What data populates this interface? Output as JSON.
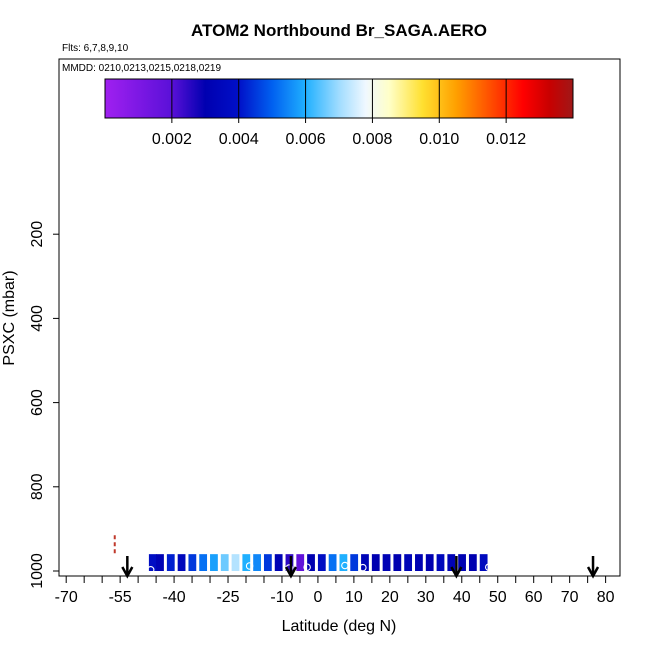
{
  "chart_data": {
    "type": "heatmap",
    "title": "ATOM2 Northbound Br_SAGA.AERO",
    "flights_label": "Flts: 6,7,8,9,10",
    "dates_label": "MMDD: 0210,0213,0215,0218,0219",
    "xlabel": "Latitude (deg N)",
    "ylabel": "PSXC (mbar)",
    "xlim": [
      -72,
      84
    ],
    "ylim": [
      1000,
      0
    ],
    "x_ticks": [
      -70,
      -55,
      -40,
      -25,
      -10,
      0,
      10,
      20,
      30,
      40,
      50,
      60,
      70,
      80
    ],
    "y_ticks": [
      200,
      400,
      600,
      800,
      1000
    ],
    "colorbar": {
      "range": [
        0.0,
        0.014
      ],
      "tick_values": [
        0.002,
        0.004,
        0.006,
        0.008,
        0.01,
        0.012
      ],
      "tick_labels": [
        "0.002",
        "0.004",
        "0.006",
        "0.008",
        "0.010",
        "0.012"
      ],
      "stops": [
        {
          "value": 0.0,
          "color": "#a020f0"
        },
        {
          "value": 0.002,
          "color": "#5a10d8"
        },
        {
          "value": 0.003,
          "color": "#0000b0"
        },
        {
          "value": 0.004,
          "color": "#0010c8"
        },
        {
          "value": 0.005,
          "color": "#0060f0"
        },
        {
          "value": 0.006,
          "color": "#20b0ff"
        },
        {
          "value": 0.007,
          "color": "#a0dcff"
        },
        {
          "value": 0.0078,
          "color": "#f0f8ff"
        },
        {
          "value": 0.0085,
          "color": "#ffffc8"
        },
        {
          "value": 0.0095,
          "color": "#ffe030"
        },
        {
          "value": 0.0105,
          "color": "#ffa000"
        },
        {
          "value": 0.0115,
          "color": "#ff5000"
        },
        {
          "value": 0.0125,
          "color": "#ff0000"
        },
        {
          "value": 0.0133,
          "color": "#c80000"
        },
        {
          "value": 0.014,
          "color": "#a01818"
        }
      ]
    },
    "band": {
      "pressure_top": 960,
      "pressure_bottom": 1000,
      "cells": [
        {
          "lat": -46,
          "value": 0.0038
        },
        {
          "lat": -44,
          "value": 0.0032
        },
        {
          "lat": -41,
          "value": 0.0042
        },
        {
          "lat": -38,
          "value": 0.0035
        },
        {
          "lat": -35,
          "value": 0.0045
        },
        {
          "lat": -32,
          "value": 0.0052
        },
        {
          "lat": -29,
          "value": 0.0058
        },
        {
          "lat": -26,
          "value": 0.0066
        },
        {
          "lat": -23,
          "value": 0.0072
        },
        {
          "lat": -20,
          "value": 0.006
        },
        {
          "lat": -17,
          "value": 0.0055
        },
        {
          "lat": -14,
          "value": 0.0045
        },
        {
          "lat": -11,
          "value": 0.0032
        },
        {
          "lat": -8,
          "value": 0.0025
        },
        {
          "lat": -5,
          "value": 0.0018
        },
        {
          "lat": -2,
          "value": 0.003
        },
        {
          "lat": 1,
          "value": 0.0038
        },
        {
          "lat": 4,
          "value": 0.0052
        },
        {
          "lat": 7,
          "value": 0.006
        },
        {
          "lat": 10,
          "value": 0.0045
        },
        {
          "lat": 13,
          "value": 0.0033
        },
        {
          "lat": 16,
          "value": 0.003
        },
        {
          "lat": 19,
          "value": 0.0032
        },
        {
          "lat": 22,
          "value": 0.003
        },
        {
          "lat": 25,
          "value": 0.0033
        },
        {
          "lat": 28,
          "value": 0.0031
        },
        {
          "lat": 31,
          "value": 0.003
        },
        {
          "lat": 34,
          "value": 0.0035
        },
        {
          "lat": 37,
          "value": 0.0032
        },
        {
          "lat": 40,
          "value": 0.0031
        },
        {
          "lat": 43,
          "value": 0.003
        },
        {
          "lat": 46,
          "value": 0.0036
        }
      ]
    },
    "markers": [
      {
        "lat": -46.5,
        "pressure": 997
      },
      {
        "lat": -19,
        "pressure": 988
      },
      {
        "lat": -8,
        "pressure": 993
      },
      {
        "lat": -3,
        "pressure": 991
      },
      {
        "lat": 7.5,
        "pressure": 987
      },
      {
        "lat": 12.5,
        "pressure": 992
      },
      {
        "lat": 47.5,
        "pressure": 991
      }
    ],
    "arrows": [
      {
        "lat": -53
      },
      {
        "lat": -7.5
      },
      {
        "lat": 38.5
      },
      {
        "lat": 76.5
      }
    ],
    "red_dash_segment": {
      "lat": -56.5,
      "pressure_top": 915,
      "pressure_bottom": 960
    }
  }
}
